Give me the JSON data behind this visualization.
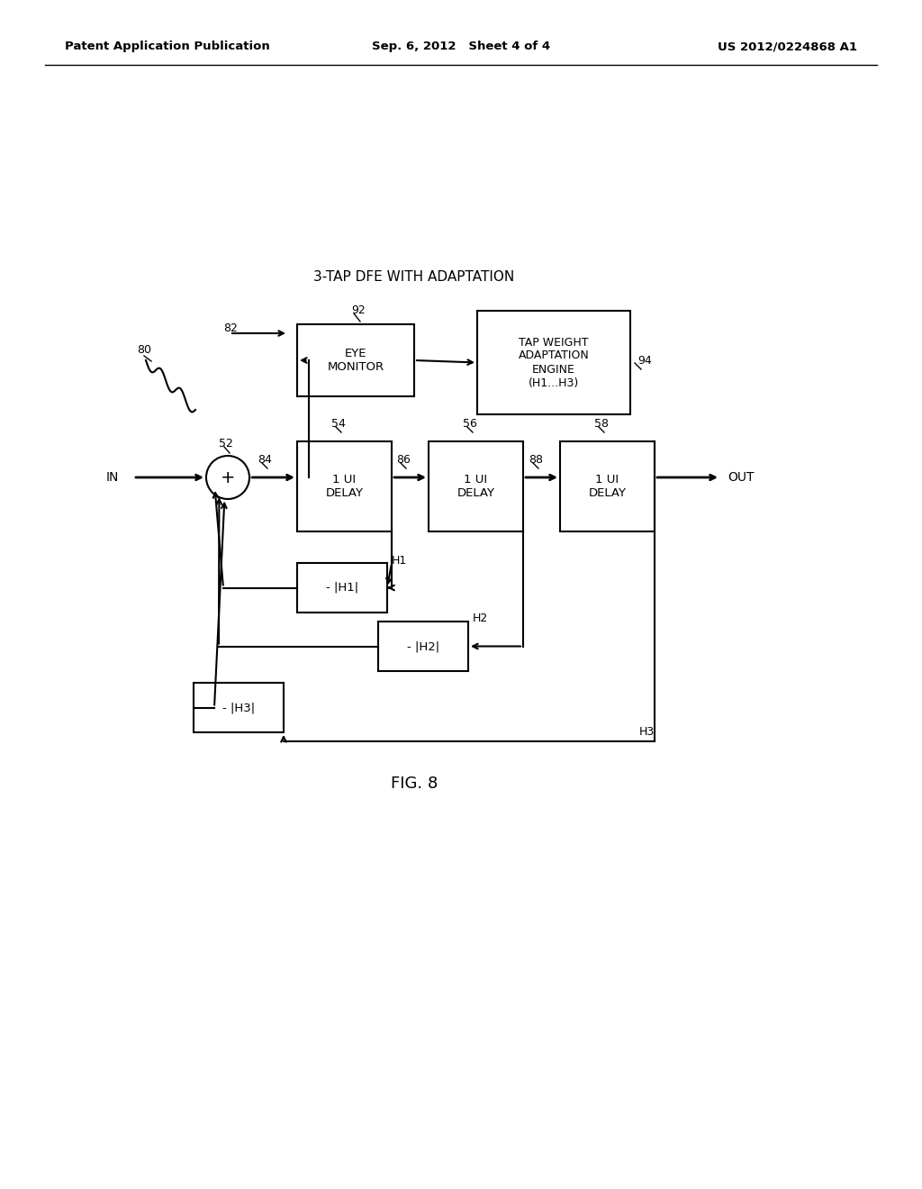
{
  "bg_color": "#ffffff",
  "line_color": "#000000",
  "title": "3-TAP DFE WITH ADAPTATION",
  "fig_label": "FIG. 8",
  "header_left": "Patent Application Publication",
  "header_center": "Sep. 6, 2012   Sheet 4 of 4",
  "header_right": "US 2012/0224868 A1",
  "figsize": [
    10.24,
    13.2
  ],
  "dpi": 100
}
